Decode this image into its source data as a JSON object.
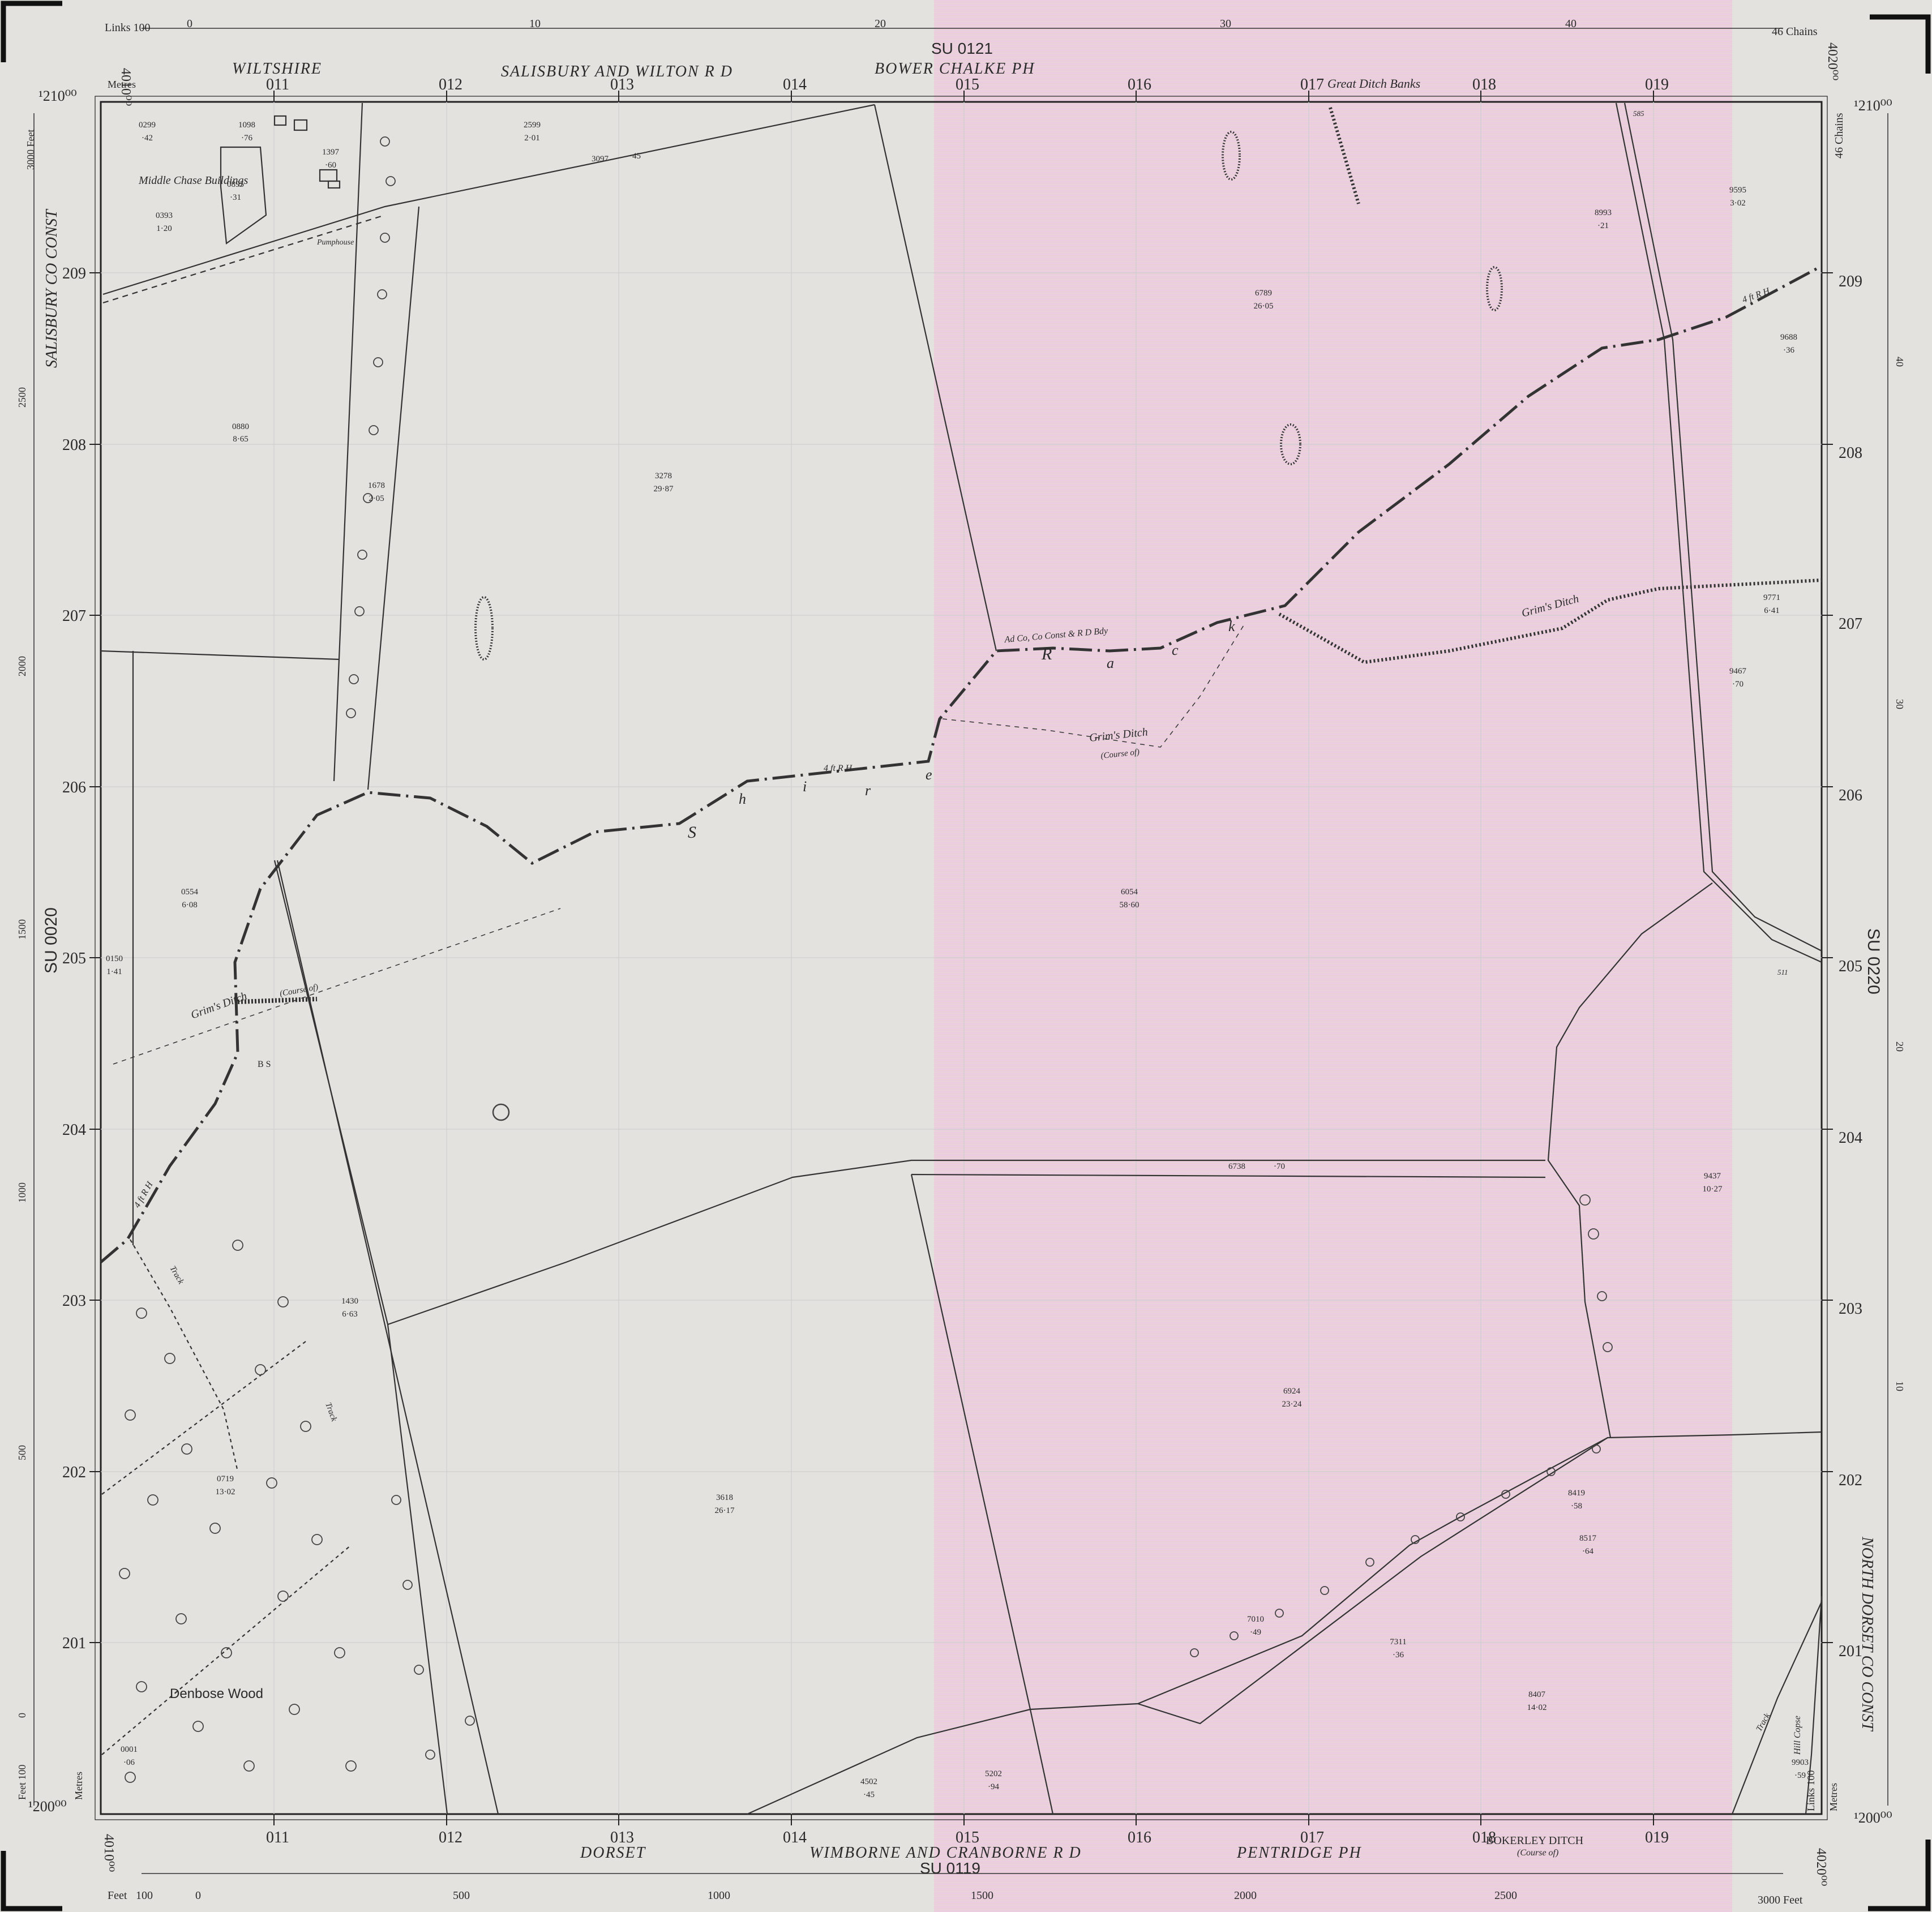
{
  "sheet": {
    "top_id": "SU 0121",
    "bottom_id": "SU 0119",
    "left_id": "SU 0020",
    "right_id": "SU 0220",
    "corner_top_left_easting": "4010⁰⁰",
    "corner_top_right_easting": "4020⁰⁰",
    "corner_bottom_left_easting": "4010⁰⁰",
    "corner_bottom_right_easting": "4020⁰⁰",
    "northing_top_left": "¹210⁰⁰",
    "northing_top_right": "¹210⁰⁰",
    "northing_bottom_left": "¹200⁰⁰",
    "northing_bottom_right": "¹200⁰⁰"
  },
  "scales": {
    "links_label": "Links 100",
    "links_ticks": [
      "0",
      "10",
      "20",
      "30",
      "40"
    ],
    "chains_label": "46 Chains",
    "metres_label": "Metres",
    "feet_label": "Feet",
    "feet_100_label": "Feet 100",
    "feet_top_label": "3000 Feet",
    "feet_ticks": [
      "100",
      "0",
      "500",
      "1000",
      "1500",
      "2000",
      "2500"
    ],
    "left_feet_ticks": [
      "2500",
      "2000",
      "1500",
      "1000",
      "500",
      "0"
    ],
    "right_chain_ticks": [
      "40",
      "30",
      "20",
      "10"
    ],
    "right_links": "Links 100",
    "right_metres": "Metres"
  },
  "grid": {
    "eastings": [
      "011",
      "012",
      "013",
      "014",
      "015",
      "016",
      "017",
      "018",
      "019"
    ],
    "northings": [
      "209",
      "208",
      "207",
      "206",
      "205",
      "204",
      "203",
      "202",
      "201"
    ]
  },
  "admin": {
    "top_left_county": "WILTSHIRE",
    "top_rd": "SALISBURY AND WILTON R D",
    "top_parish": "BOWER CHALKE PH",
    "top_feature": "Great Ditch Banks",
    "bottom_county": "DORSET",
    "bottom_rd": "WIMBORNE AND CRANBORNE R D",
    "bottom_parish": "PENTRIDGE PH",
    "bottom_feature": "BOKERLEY DITCH",
    "bottom_feature_note": "(Course of)",
    "left_const": "SALISBURY CO CONST",
    "right_const": "NORTH DORSET CO CONST",
    "boundary_note": "Ad Co, Co Const & R D Bdy",
    "shire_letters": [
      "S",
      "h",
      "i",
      "r",
      "e"
    ],
    "race_letters": [
      "R",
      "a",
      "c",
      "k"
    ],
    "rh_4ft": "4 ft R H"
  },
  "places": {
    "middle_chase": "Middle Chase Buildings",
    "pumphouse": "Pumphouse",
    "denbose": "Denbose Wood",
    "hill_copse": "Hill Copse",
    "grims_ditch": "Grim's Ditch",
    "course_of": "(Course of)",
    "track": "Track",
    "bs": "B S"
  },
  "parcels": [
    {
      "no": "0299",
      "area": "·42"
    },
    {
      "no": "1098",
      "area": "·76"
    },
    {
      "no": "1397",
      "area": "·60"
    },
    {
      "no": "0895",
      "area": "·31"
    },
    {
      "no": "0393",
      "area": "1·20"
    },
    {
      "no": "2599",
      "area": "2·01"
    },
    {
      "no": "3097",
      "area": "·45"
    },
    {
      "no": "0880",
      "area": "8·65"
    },
    {
      "no": "1678",
      "area": "2·05"
    },
    {
      "no": "3278",
      "area": "29·87"
    },
    {
      "no": "6789",
      "area": "26·05"
    },
    {
      "no": "8993",
      "area": "·21"
    },
    {
      "no": "9595",
      "area": "3·02"
    },
    {
      "no": "9688",
      "area": "·36"
    },
    {
      "no": "9771",
      "area": "6·41"
    },
    {
      "no": "9467",
      "area": "·70"
    },
    {
      "no": "0554",
      "area": "6·08"
    },
    {
      "no": "0150",
      "area": "1·41"
    },
    {
      "no": "6054",
      "area": "58·60"
    },
    {
      "no": "6738",
      "area": "·70"
    },
    {
      "no": "9437",
      "area": "10·27"
    },
    {
      "no": "1430",
      "area": "6·63"
    },
    {
      "no": "6924",
      "area": "23·24"
    },
    {
      "no": "0719",
      "area": "13·02"
    },
    {
      "no": "3618",
      "area": "26·17"
    },
    {
      "no": "8419",
      "area": "·58"
    },
    {
      "no": "8517",
      "area": "·64"
    },
    {
      "no": "7010",
      "area": "·49"
    },
    {
      "no": "7311",
      "area": "·36"
    },
    {
      "no": "8407",
      "area": "14·02"
    },
    {
      "no": "0001",
      "area": "·06"
    },
    {
      "no": "5202",
      "area": "·94"
    },
    {
      "no": "4502",
      "area": "·45"
    },
    {
      "no": "9903",
      "area": "·59"
    }
  ],
  "spot_numbers": [
    "585",
    "511"
  ],
  "colors": {
    "paper": "#e4e2df",
    "tint": "#ecc6dc",
    "ink": "#2a2a2a"
  }
}
